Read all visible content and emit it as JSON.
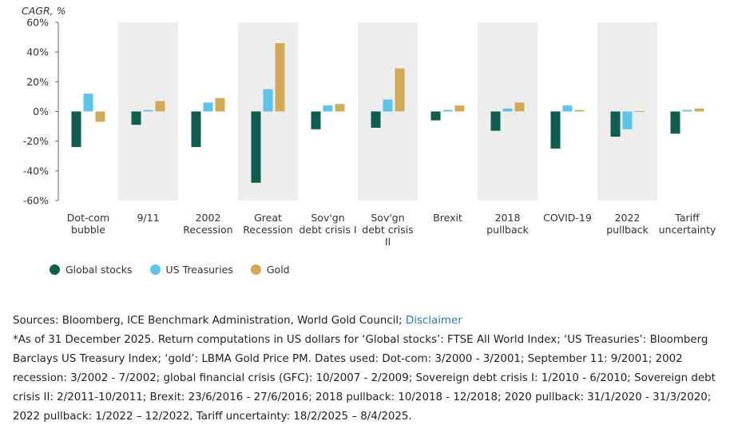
{
  "chart_data": {
    "type": "bar",
    "ylabel": "CAGR, %",
    "ylim": [
      -60,
      60
    ],
    "yticks": [
      60,
      40,
      20,
      0,
      -20,
      -40,
      -60
    ],
    "ytick_labels": [
      "60%",
      "40%",
      "20%",
      "0%",
      "-20%",
      "-40%",
      "-60%"
    ],
    "categories": [
      [
        "Dot-com",
        "bubble"
      ],
      [
        "9/11"
      ],
      [
        "2002",
        "Recession"
      ],
      [
        "Great",
        "Recession"
      ],
      [
        "Sov'gn",
        "debt crisis I"
      ],
      [
        "Sov'gn",
        "debt crisis",
        "II"
      ],
      [
        "Brexit"
      ],
      [
        "2018",
        "pullback"
      ],
      [
        "COVID-19"
      ],
      [
        "2022",
        "pullback"
      ],
      [
        "Tariff",
        "uncertainty"
      ]
    ],
    "series": [
      {
        "name": "Global stocks",
        "color": "#0e5e50",
        "values": [
          -24,
          -9,
          -24,
          -48,
          -12,
          -11,
          -6,
          -13,
          -25,
          -17,
          -15
        ]
      },
      {
        "name": "US Treasuries",
        "color": "#5bc4ec",
        "values": [
          12,
          1,
          6,
          15,
          4,
          8,
          1,
          2,
          4,
          -12,
          1
        ]
      },
      {
        "name": "Gold",
        "color": "#d2aa55",
        "values": [
          -7,
          7,
          9,
          46,
          5,
          29,
          4,
          6,
          1,
          0.3,
          2
        ]
      }
    ],
    "band_colors": [
      "#ffffff",
      "#ededed"
    ],
    "grid": false,
    "legend_position": "bottom-left"
  },
  "notes": {
    "sources_prefix": "Sources: Bloomberg, ICE Benchmark Administration, World Gold Council;",
    "disclaimer_link": "Disclaimer",
    "footnote": "*As of 31 December 2025. Return computations in US dollars for ‘Global stocks’: FTSE All World Index; ‘US Treasuries’: Bloomberg Barclays US Treasury Index; ‘gold’: LBMA Gold Price PM. Dates used: Dot-com: 3/2000 - 3/2001; September 11: 9/2001; 2002 recession: 3/2002 - 7/2002; global financial crisis (GFC): 10/2007 - 2/2009; Sovereign debt crisis I: 1/2010 - 6/2010; Sovereign debt crisis II: 2/2011-10/2011; Brexit: 23/6/2016 - 27/6/2016; 2018 pullback: 10/2018 - 12/2018; 2020 pullback: 31/1/2020 - 31/3/2020; 2022 pullback: 1/2022 – 12/2022, Tariff uncertainty: 18/2/2025 – 8/4/2025."
  }
}
